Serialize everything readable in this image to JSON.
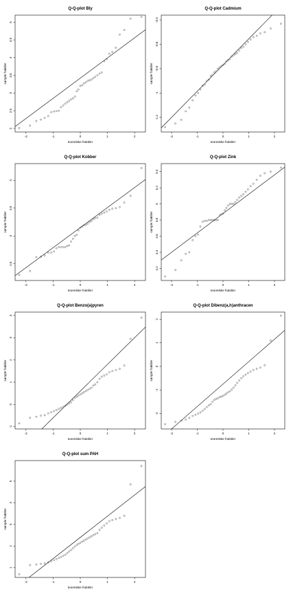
{
  "chart_data": [
    {
      "type": "scatter",
      "title": "Q-Q-plot Bly",
      "xlabel": "teoretiske fraktiler",
      "ylabel": "sample fraktiler",
      "xlim": [
        -2.4,
        2.4
      ],
      "ylim": [
        1.9,
        5.2
      ],
      "xticks": [
        -2,
        -1,
        0,
        1,
        2
      ],
      "yticks": [
        2.0,
        2.5,
        3.0,
        3.5,
        4.0,
        4.5,
        5.0
      ],
      "line": {
        "intercept": 3.42,
        "slope": 0.57
      },
      "x": [
        -2.25,
        -1.85,
        -1.62,
        -1.45,
        -1.31,
        -1.18,
        -1.07,
        -0.97,
        -0.88,
        -0.79,
        -0.71,
        -0.63,
        -0.55,
        -0.48,
        -0.41,
        -0.34,
        -0.27,
        -0.2,
        -0.13,
        -0.07,
        0.0,
        0.07,
        0.13,
        0.2,
        0.27,
        0.34,
        0.41,
        0.48,
        0.55,
        0.63,
        0.71,
        0.79,
        0.88,
        0.97,
        1.07,
        1.18,
        1.31,
        1.45,
        1.62,
        1.85,
        2.25
      ],
      "y": [
        2.01,
        2.08,
        2.21,
        2.25,
        2.3,
        2.35,
        2.46,
        2.48,
        2.49,
        2.5,
        2.6,
        2.65,
        2.7,
        2.74,
        2.78,
        2.82,
        2.85,
        2.9,
        3.05,
        3.1,
        3.2,
        3.22,
        3.27,
        3.3,
        3.34,
        3.36,
        3.38,
        3.42,
        3.46,
        3.5,
        3.55,
        3.58,
        3.9,
        3.96,
        4.11,
        4.16,
        4.28,
        4.65,
        4.78,
        5.1,
        5.15
      ]
    },
    {
      "type": "scatter",
      "title": "Q-Q-plot Cadmium",
      "xlabel": "teoretiske fraktiler",
      "ylabel": "sample fraktiler",
      "xlim": [
        -2.4,
        2.4
      ],
      "ylim": [
        -1.32,
        -0.36
      ],
      "xticks": [
        -2,
        -1,
        0,
        1,
        2
      ],
      "yticks": [
        -1.2,
        -1.0,
        -0.8,
        -0.6,
        -0.4
      ],
      "line": {
        "intercept": -0.77,
        "slope": 0.215
      },
      "x": [
        -2.25,
        -1.85,
        -1.62,
        -1.45,
        -1.31,
        -1.18,
        -1.07,
        -0.97,
        -0.88,
        -0.79,
        -0.71,
        -0.63,
        -0.55,
        -0.48,
        -0.41,
        -0.34,
        -0.27,
        -0.2,
        -0.13,
        -0.07,
        0.0,
        0.07,
        0.13,
        0.2,
        0.27,
        0.34,
        0.41,
        0.48,
        0.55,
        0.63,
        0.71,
        0.79,
        0.88,
        0.97,
        1.07,
        1.18,
        1.31,
        1.45,
        1.62,
        1.85,
        2.25
      ],
      "y": [
        -1.28,
        -1.25,
        -1.22,
        -1.15,
        -1.12,
        -1.06,
        -1.02,
        -1.0,
        -0.97,
        -0.94,
        -0.93,
        -0.9,
        -0.89,
        -0.86,
        -0.85,
        -0.83,
        -0.82,
        -0.8,
        -0.79,
        -0.78,
        -0.77,
        -0.76,
        -0.74,
        -0.73,
        -0.72,
        -0.7,
        -0.69,
        -0.68,
        -0.67,
        -0.65,
        -0.63,
        -0.62,
        -0.6,
        -0.58,
        -0.56,
        -0.54,
        -0.53,
        -0.51,
        -0.5,
        -0.47,
        -0.43
      ]
    },
    {
      "type": "scatter",
      "title": "Q-Q-plot Kobber",
      "xlabel": "teoretiske fraktiler",
      "ylabel": "sample fraktiler",
      "xlim": [
        -2.4,
        2.4
      ],
      "ylim": [
        2.2,
        4.3
      ],
      "xticks": [
        -2,
        -1,
        0,
        1,
        2
      ],
      "yticks": [
        2.5,
        3.0,
        3.5,
        4.0
      ],
      "line": {
        "intercept": 3.15,
        "slope": 0.36
      },
      "x": [
        -2.25,
        -1.85,
        -1.62,
        -1.45,
        -1.31,
        -1.18,
        -1.07,
        -0.97,
        -0.88,
        -0.79,
        -0.71,
        -0.63,
        -0.55,
        -0.48,
        -0.41,
        -0.34,
        -0.27,
        -0.2,
        -0.13,
        -0.07,
        0.0,
        0.07,
        0.13,
        0.2,
        0.27,
        0.34,
        0.41,
        0.48,
        0.55,
        0.63,
        0.71,
        0.79,
        0.88,
        0.97,
        1.07,
        1.18,
        1.31,
        1.45,
        1.62,
        1.85,
        2.25
      ],
      "y": [
        2.3,
        2.37,
        2.62,
        2.63,
        2.65,
        2.7,
        2.7,
        2.72,
        2.78,
        2.8,
        2.8,
        2.8,
        2.8,
        2.82,
        2.83,
        2.9,
        2.95,
        3.0,
        3.02,
        3.1,
        3.15,
        3.17,
        3.19,
        3.2,
        3.22,
        3.25,
        3.27,
        3.3,
        3.32,
        3.33,
        3.38,
        3.4,
        3.42,
        3.44,
        3.47,
        3.49,
        3.5,
        3.52,
        3.6,
        3.72,
        4.22
      ]
    },
    {
      "type": "scatter",
      "title": "Q-Q-plot Zink",
      "xlabel": "teoretiske fraktiler",
      "ylabel": "sample fraktiler",
      "xlim": [
        -2.4,
        2.4
      ],
      "ylim": [
        4.05,
        5.5
      ],
      "xticks": [
        -2,
        -1,
        0,
        1,
        2
      ],
      "yticks": [
        4.2,
        4.4,
        4.6,
        4.8,
        5.0,
        5.2,
        5.4
      ],
      "line": {
        "intercept": 4.88,
        "slope": 0.24
      },
      "x": [
        -2.25,
        -1.85,
        -1.62,
        -1.45,
        -1.31,
        -1.18,
        -1.07,
        -0.97,
        -0.88,
        -0.79,
        -0.71,
        -0.63,
        -0.55,
        -0.48,
        -0.41,
        -0.34,
        -0.27,
        -0.2,
        -0.13,
        -0.07,
        0.0,
        0.07,
        0.13,
        0.2,
        0.27,
        0.34,
        0.41,
        0.48,
        0.55,
        0.63,
        0.71,
        0.79,
        0.88,
        0.97,
        1.07,
        1.18,
        1.31,
        1.45,
        1.62,
        1.85,
        2.25
      ],
      "y": [
        4.1,
        4.18,
        4.3,
        4.38,
        4.4,
        4.55,
        4.6,
        4.62,
        4.72,
        4.78,
        4.79,
        4.79,
        4.8,
        4.8,
        4.8,
        4.8,
        4.8,
        4.8,
        4.86,
        4.87,
        4.88,
        4.92,
        4.95,
        4.98,
        5.0,
        5.0,
        5.0,
        5.02,
        5.05,
        5.08,
        5.1,
        5.12,
        5.15,
        5.18,
        5.22,
        5.25,
        5.3,
        5.35,
        5.38,
        5.4,
        5.45
      ]
    },
    {
      "type": "scatter",
      "title": "Q-Q-plot Benzo(a)pyren",
      "xlabel": "teoretiske fraktiler",
      "ylabel": "sample fraktiler",
      "xlim": [
        -2.4,
        2.4
      ],
      "ylim": [
        -1.1,
        4.15
      ],
      "xticks": [
        -2,
        -1,
        0,
        1,
        2
      ],
      "yticks": [
        -1,
        0,
        1,
        2,
        3,
        4
      ],
      "line": {
        "intercept": 0.6,
        "slope": 1.2
      },
      "x": [
        -2.25,
        -1.85,
        -1.62,
        -1.45,
        -1.31,
        -1.18,
        -1.07,
        -0.97,
        -0.88,
        -0.79,
        -0.71,
        -0.63,
        -0.55,
        -0.48,
        -0.41,
        -0.34,
        -0.27,
        -0.2,
        -0.13,
        -0.07,
        0.0,
        0.07,
        0.13,
        0.2,
        0.27,
        0.34,
        0.41,
        0.48,
        0.55,
        0.63,
        0.71,
        0.79,
        0.88,
        0.97,
        1.07,
        1.18,
        1.31,
        1.45,
        1.62,
        1.85,
        2.25
      ],
      "y": [
        -0.85,
        -0.6,
        -0.55,
        -0.5,
        -0.48,
        -0.4,
        -0.35,
        -0.3,
        -0.25,
        -0.2,
        -0.15,
        -0.1,
        -0.05,
        0.0,
        0.05,
        0.1,
        0.2,
        0.3,
        0.35,
        0.4,
        0.45,
        0.5,
        0.55,
        0.6,
        0.65,
        0.7,
        0.75,
        0.85,
        0.9,
        1.0,
        1.15,
        1.25,
        1.3,
        1.35,
        1.45,
        1.5,
        1.55,
        1.6,
        1.75,
        2.95,
        3.9
      ]
    },
    {
      "type": "scatter",
      "title": "Q-Q-plot Dibenz(a,h)anthracen",
      "xlabel": "teoretiske fraktiler",
      "ylabel": "sample fraktiler",
      "xlim": [
        -2.4,
        2.4
      ],
      "ylim": [
        -2.65,
        2.3
      ],
      "xticks": [
        -2,
        -1,
        0,
        1,
        2
      ],
      "yticks": [
        -2,
        -1,
        0,
        1,
        2
      ],
      "line": {
        "intercept": -0.75,
        "slope": 0.95
      },
      "x": [
        -2.25,
        -1.85,
        -1.62,
        -1.45,
        -1.31,
        -1.18,
        -1.07,
        -0.97,
        -0.88,
        -0.79,
        -0.71,
        -0.63,
        -0.55,
        -0.48,
        -0.41,
        -0.34,
        -0.27,
        -0.2,
        -0.13,
        -0.07,
        0.0,
        0.07,
        0.13,
        0.2,
        0.27,
        0.34,
        0.41,
        0.48,
        0.55,
        0.63,
        0.71,
        0.79,
        0.88,
        0.97,
        1.07,
        1.18,
        1.31,
        1.45,
        1.62,
        1.85,
        2.25
      ],
      "y": [
        -2.45,
        -2.35,
        -2.3,
        -2.25,
        -2.18,
        -2.1,
        -2.05,
        -2.0,
        -1.95,
        -1.88,
        -1.8,
        -1.72,
        -1.65,
        -1.6,
        -1.5,
        -1.42,
        -1.38,
        -1.35,
        -1.3,
        -1.28,
        -1.25,
        -1.2,
        -1.15,
        -1.1,
        -1.05,
        -0.98,
        -0.9,
        -0.8,
        -0.7,
        -0.6,
        -0.5,
        -0.42,
        -0.35,
        -0.28,
        -0.22,
        -0.15,
        -0.1,
        -0.05,
        0.05,
        1.1,
        2.15
      ]
    },
    {
      "type": "scatter",
      "title": "Q-Q-plot sum PAH",
      "xlabel": "teoretiske fraktiler",
      "ylabel": "sample fraktiler",
      "xlim": [
        -2.4,
        2.4
      ],
      "ylim": [
        0.55,
        5.95
      ],
      "xticks": [
        -2,
        -1,
        0,
        1,
        2
      ],
      "yticks": [
        1,
        2,
        3,
        4,
        5
      ],
      "line": {
        "intercept": 2.4,
        "slope": 0.98
      },
      "x": [
        -2.25,
        -1.85,
        -1.62,
        -1.45,
        -1.31,
        -1.18,
        -1.07,
        -0.97,
        -0.88,
        -0.79,
        -0.71,
        -0.63,
        -0.55,
        -0.48,
        -0.41,
        -0.34,
        -0.27,
        -0.2,
        -0.13,
        -0.07,
        0.0,
        0.07,
        0.13,
        0.2,
        0.27,
        0.34,
        0.41,
        0.48,
        0.55,
        0.63,
        0.71,
        0.79,
        0.88,
        0.97,
        1.07,
        1.18,
        1.31,
        1.45,
        1.62,
        1.85,
        2.25
      ],
      "y": [
        0.7,
        1.12,
        1.15,
        1.18,
        1.2,
        1.25,
        1.3,
        1.35,
        1.4,
        1.45,
        1.5,
        1.55,
        1.6,
        1.68,
        1.75,
        1.82,
        1.9,
        1.98,
        2.05,
        2.1,
        2.15,
        2.2,
        2.25,
        2.3,
        2.35,
        2.4,
        2.45,
        2.5,
        2.55,
        2.6,
        2.75,
        2.85,
        2.95,
        3.05,
        3.15,
        3.2,
        3.25,
        3.3,
        3.4,
        4.85,
        5.7
      ]
    }
  ]
}
